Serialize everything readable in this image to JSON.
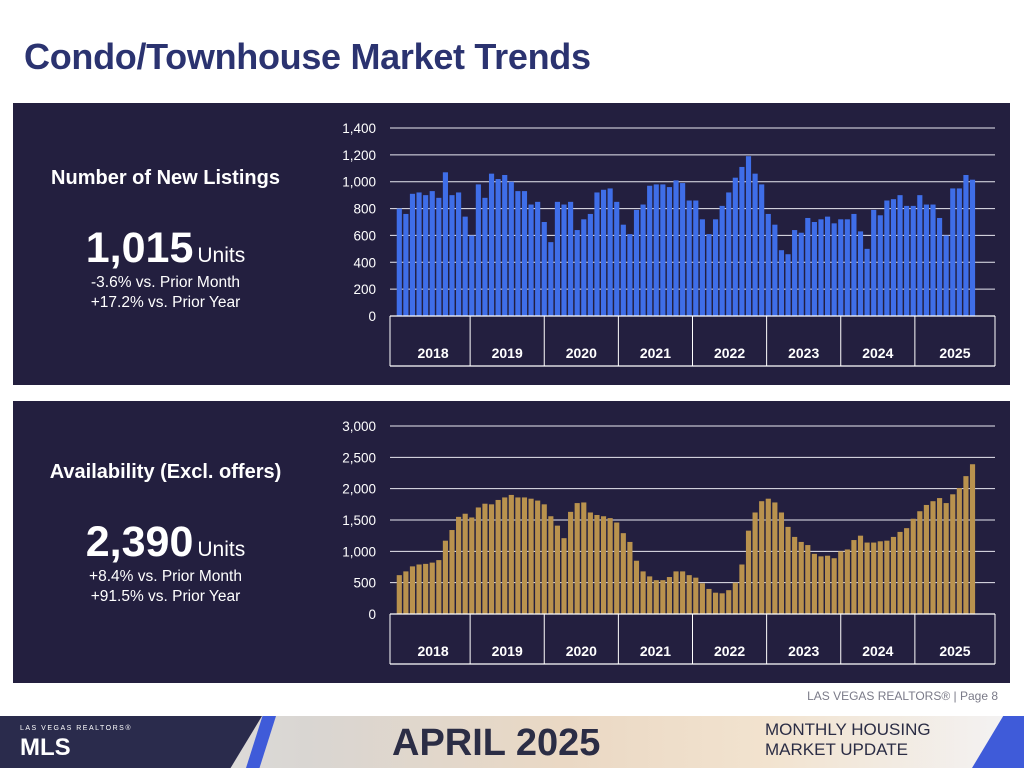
{
  "page": {
    "title": "Condo/Townhouse Market Trends"
  },
  "colors": {
    "title": "#2b3370",
    "panel": "#231f3f",
    "bar_listings": "#3f6ee8",
    "bar_availability": "#b9924e"
  },
  "listings": {
    "label": "Number of New Listings",
    "value": "1,015",
    "unit": "Units",
    "mom": "-3.6% vs. Prior Month",
    "yoy": "+17.2% vs. Prior Year"
  },
  "availability": {
    "label": "Availability (Excl. offers)",
    "value": "2,390",
    "unit": "Units",
    "mom": "+8.4% vs. Prior Month",
    "yoy": "+91.5% vs. Prior Year"
  },
  "footer": {
    "note": "LAS VEGAS REALTORS® | Page 8"
  },
  "banner": {
    "logo_top": "LAS VEGAS REALTORS®",
    "logo_mls": "MLS",
    "month": "APRIL 2025",
    "line1": "MONTHLY HOUSING",
    "line2": "MARKET UPDATE"
  },
  "chart_data": [
    {
      "type": "bar",
      "series": [
        {
          "name": "Number of New Listings"
        }
      ],
      "year_labels": [
        "2018",
        "2019",
        "2020",
        "2021",
        "2022",
        "2023",
        "2024",
        "2025"
      ],
      "ylim": [
        0,
        1400
      ],
      "y_ticks": [
        "0",
        "200",
        "400",
        "600",
        "800",
        "1,000",
        "1,200",
        "1,400"
      ],
      "y_tick_values": [
        0,
        200,
        400,
        600,
        800,
        1000,
        1200,
        1400
      ],
      "grid": true,
      "values": [
        800,
        760,
        910,
        920,
        900,
        930,
        880,
        1070,
        900,
        920,
        740,
        600,
        980,
        880,
        1060,
        1020,
        1050,
        1000,
        930,
        930,
        830,
        850,
        700,
        550,
        850,
        830,
        850,
        640,
        720,
        760,
        920,
        940,
        950,
        850,
        680,
        610,
        790,
        830,
        970,
        980,
        980,
        960,
        1010,
        990,
        860,
        860,
        720,
        610,
        720,
        820,
        920,
        1030,
        1110,
        1190,
        1060,
        980,
        760,
        680,
        490,
        460,
        640,
        620,
        730,
        700,
        720,
        740,
        690,
        720,
        720,
        760,
        630,
        500,
        790,
        750,
        860,
        870,
        900,
        820,
        820,
        900,
        830,
        830,
        730,
        600,
        950,
        950,
        1050,
        1015
      ]
    },
    {
      "type": "bar",
      "series": [
        {
          "name": "Availability (Excl. offers)"
        }
      ],
      "year_labels": [
        "2018",
        "2019",
        "2020",
        "2021",
        "2022",
        "2023",
        "2024",
        "2025"
      ],
      "ylim": [
        0,
        3000
      ],
      "y_ticks": [
        "0",
        "500",
        "1,000",
        "1,500",
        "2,000",
        "2,500",
        "3,000"
      ],
      "y_tick_values": [
        0,
        500,
        1000,
        1500,
        2000,
        2500,
        3000
      ],
      "grid": true,
      "values": [
        620,
        680,
        760,
        790,
        800,
        820,
        860,
        1170,
        1340,
        1550,
        1600,
        1540,
        1700,
        1760,
        1750,
        1820,
        1860,
        1900,
        1860,
        1860,
        1840,
        1810,
        1750,
        1560,
        1410,
        1210,
        1630,
        1770,
        1780,
        1620,
        1580,
        1560,
        1530,
        1460,
        1290,
        1150,
        850,
        680,
        600,
        540,
        540,
        590,
        680,
        680,
        620,
        580,
        490,
        400,
        340,
        330,
        380,
        500,
        790,
        1330,
        1620,
        1800,
        1840,
        1780,
        1620,
        1390,
        1230,
        1150,
        1100,
        960,
        920,
        930,
        890,
        1000,
        1030,
        1180,
        1250,
        1140,
        1140,
        1160,
        1170,
        1230,
        1310,
        1370,
        1520,
        1640,
        1740,
        1800,
        1850,
        1770,
        1910,
        2010,
        2200,
        2390
      ]
    }
  ]
}
